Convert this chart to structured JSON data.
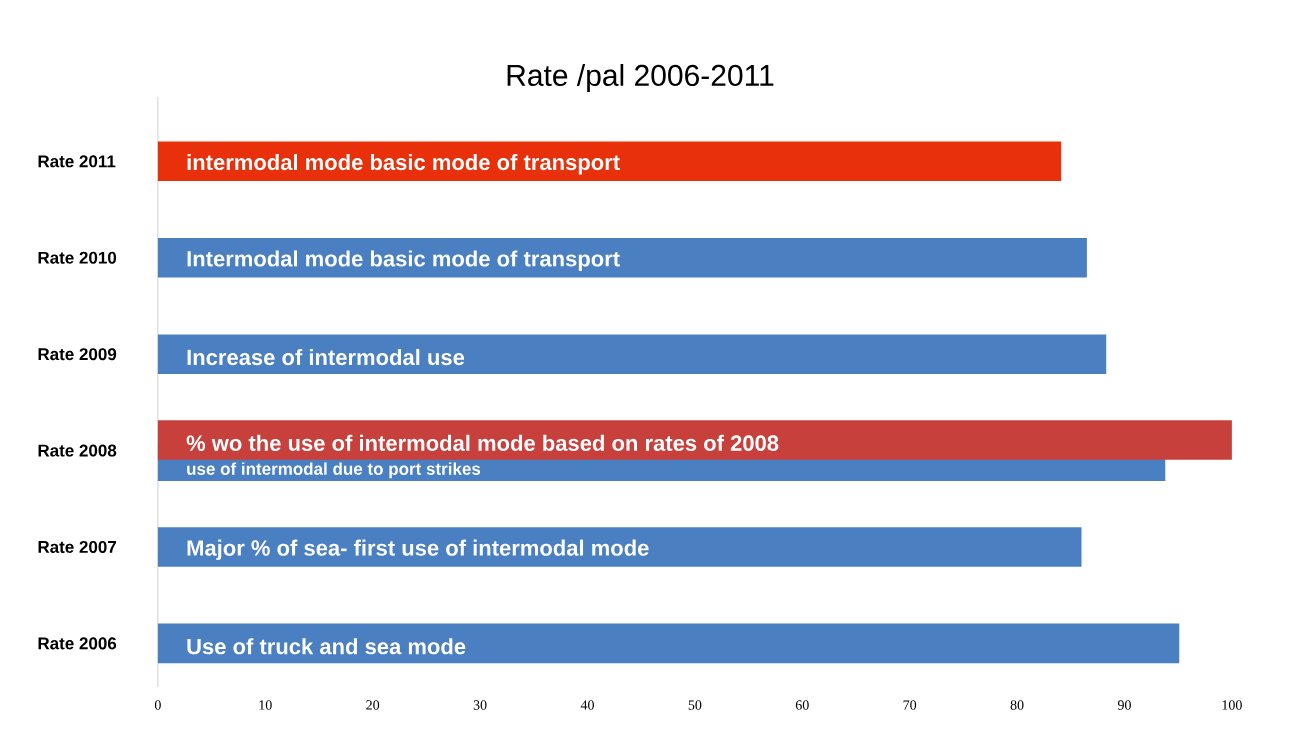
{
  "chart_data": {
    "type": "bar",
    "orientation": "horizontal",
    "title": "Rate /pal 2006-2011",
    "categories": [
      "Rate 2011",
      "Rate 2010",
      "Rate 2009",
      "Rate 2008",
      "Rate 2007",
      "Rate 2006"
    ],
    "xlim": [
      0,
      100
    ],
    "xticks": [
      0,
      10,
      20,
      30,
      40,
      50,
      60,
      70,
      80,
      90,
      100
    ],
    "series": [
      {
        "colors": [
          "#e8300a",
          "#4a7fc1",
          "#4a7fc1",
          "#4a7fc1",
          "#4a7fc1",
          "#4a7fc1"
        ],
        "values": [
          84.1,
          86.5,
          88.3,
          93.8,
          86.0,
          95.1
        ],
        "value_labels": [
          "intermodal mode basic mode of transport",
          "Intermodal mode basic mode of transport",
          "Increase of intermodal use",
          "use of intermodal due to port strikes",
          "Major % of sea- first use of intermodal mode",
          "Use of truck and sea mode"
        ]
      },
      {
        "color": "#c8403c",
        "values": [
          null,
          null,
          null,
          100,
          null,
          null
        ],
        "value_labels": [
          null,
          null,
          null,
          "% wo the use of intermodal mode based on rates of 2008",
          null,
          null
        ]
      }
    ]
  }
}
